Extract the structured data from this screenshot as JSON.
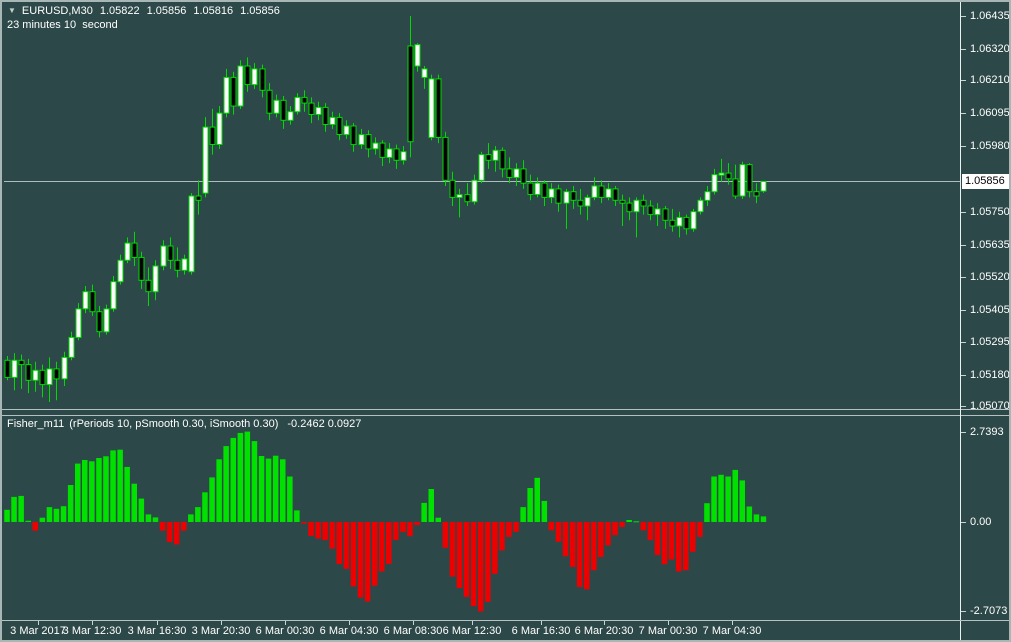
{
  "header": {
    "countdown": "23 minutes 10  second"
  },
  "icons": {
    "symbol_marker": "▼"
  },
  "colors": {
    "background": "#2d4848",
    "candle_outline": "#00db00",
    "bull_fill": "#ffffff",
    "bear_fill": "#000000",
    "hist_up": "#00e100",
    "hist_down": "#ee0000",
    "text": "#ffffff",
    "price_line": "#aebcbc",
    "current_price_bg": "#ffffff",
    "current_price_text": "#000000",
    "frame": "#a9b6b6"
  },
  "chart_data": [
    {
      "type": "candlestick",
      "title": "EURUSD,M30",
      "symbol": "EURUSD",
      "timeframe": "M30",
      "ohlc_current": {
        "open": "1.05822",
        "high": "1.05856",
        "low": "1.05816",
        "close": "1.05856"
      },
      "current_price": "1.05856",
      "grid": "off",
      "legend_position": "top-left",
      "y_axis": {
        "side": "right",
        "range": [
          1.0507,
          1.06435
        ],
        "ticks": [
          "1.06435",
          "1.06320",
          "1.06210",
          "1.06095",
          "1.05980",
          "1.05750",
          "1.05635",
          "1.05520",
          "1.05405",
          "1.05295",
          "1.05180",
          "1.05070"
        ]
      },
      "x_axis": {
        "labels": [
          [
            "3 Mar 2017",
            36
          ],
          [
            "3 Mar 12:30",
            90
          ],
          [
            "3 Mar 16:30",
            155
          ],
          [
            "3 Mar 20:30",
            219
          ],
          [
            "6 Mar 00:30",
            283
          ],
          [
            "6 Mar 04:30",
            347
          ],
          [
            "6 Mar 08:30",
            411
          ],
          [
            "6 Mar 12:30",
            470
          ],
          [
            "6 Mar 16:30",
            539
          ],
          [
            "6 Mar 20:30",
            602
          ],
          [
            "7 Mar 00:30",
            666
          ],
          [
            "7 Mar 04:30",
            730
          ]
        ]
      },
      "candles": [
        [
          1.0523,
          1.05245,
          1.0516,
          1.0517
        ],
        [
          1.0517,
          1.05255,
          1.05125,
          1.0523
        ],
        [
          1.0523,
          1.0525,
          1.0513,
          1.05215
        ],
        [
          1.05215,
          1.05235,
          1.05115,
          1.0516
        ],
        [
          1.0516,
          1.05225,
          1.0512,
          1.05195
        ],
        [
          1.05195,
          1.05215,
          1.051,
          1.05145
        ],
        [
          1.05145,
          1.0524,
          1.05084,
          1.052
        ],
        [
          1.052,
          1.05225,
          1.0509,
          1.05165
        ],
        [
          1.05165,
          1.0526,
          1.0514,
          1.0524
        ],
        [
          1.0524,
          1.0533,
          1.0523,
          1.0531
        ],
        [
          1.0531,
          1.0543,
          1.053,
          1.0541
        ],
        [
          1.0541,
          1.0549,
          1.05395,
          1.0547
        ],
        [
          1.0547,
          1.05495,
          1.05385,
          1.054
        ],
        [
          1.054,
          1.0542,
          1.0531,
          1.0533
        ],
        [
          1.0533,
          1.05425,
          1.0532,
          1.0541
        ],
        [
          1.0541,
          1.05525,
          1.054,
          1.05505
        ],
        [
          1.05505,
          1.056,
          1.05495,
          1.0558
        ],
        [
          1.0558,
          1.0566,
          1.0557,
          1.0564
        ],
        [
          1.0564,
          1.0568,
          1.0556,
          1.0559
        ],
        [
          1.0559,
          1.0561,
          1.0548,
          1.0551
        ],
        [
          1.0551,
          1.05555,
          1.0542,
          1.0547
        ],
        [
          1.0547,
          1.0558,
          1.0544,
          1.0556
        ],
        [
          1.0556,
          1.0565,
          1.05545,
          1.0563
        ],
        [
          1.0563,
          1.0566,
          1.0555,
          1.0558
        ],
        [
          1.0558,
          1.05625,
          1.0552,
          1.05545
        ],
        [
          1.05545,
          1.056,
          1.0553,
          1.05585
        ],
        [
          1.0554,
          1.05815,
          1.0553,
          1.05805
        ],
        [
          1.05805,
          1.0586,
          1.0574,
          1.0579
        ],
        [
          1.05815,
          1.06081,
          1.058,
          1.06046
        ],
        [
          1.06046,
          1.0611,
          1.0595,
          1.05985
        ],
        [
          1.05985,
          1.0612,
          1.0597,
          1.06095
        ],
        [
          1.06095,
          1.0625,
          1.0608,
          1.0622
        ],
        [
          1.0622,
          1.0624,
          1.0609,
          1.0612
        ],
        [
          1.0612,
          1.0628,
          1.0611,
          1.0626
        ],
        [
          1.0626,
          1.0629,
          1.0617,
          1.06195
        ],
        [
          1.06195,
          1.0627,
          1.0618,
          1.0625
        ],
        [
          1.0625,
          1.06265,
          1.0615,
          1.06175
        ],
        [
          1.06175,
          1.062,
          1.0607,
          1.06095
        ],
        [
          1.06095,
          1.0616,
          1.0608,
          1.0614
        ],
        [
          1.0614,
          1.06155,
          1.0604,
          1.0607
        ],
        [
          1.0607,
          1.0612,
          1.06055,
          1.061
        ],
        [
          1.061,
          1.06165,
          1.0609,
          1.0615
        ],
        [
          1.0615,
          1.06175,
          1.061,
          1.0613
        ],
        [
          1.0613,
          1.0615,
          1.0606,
          1.0609
        ],
        [
          1.0609,
          1.06135,
          1.0607,
          1.06115
        ],
        [
          1.06115,
          1.0613,
          1.0603,
          1.06055
        ],
        [
          1.06055,
          1.061,
          1.0604,
          1.0608
        ],
        [
          1.0608,
          1.06095,
          1.06,
          1.0602
        ],
        [
          1.0602,
          1.0607,
          1.06005,
          1.0605
        ],
        [
          1.0605,
          1.0606,
          1.0596,
          1.05985
        ],
        [
          1.05985,
          1.0604,
          1.0597,
          1.0602
        ],
        [
          1.0602,
          1.06035,
          1.0594,
          1.0597
        ],
        [
          1.0597,
          1.0601,
          1.0595,
          1.0599
        ],
        [
          1.0599,
          1.06,
          1.0591,
          1.0594
        ],
        [
          1.0594,
          1.0599,
          1.0592,
          1.0597
        ],
        [
          1.0597,
          1.05985,
          1.059,
          1.0593
        ],
        [
          1.0593,
          1.0598,
          1.05915,
          1.0596
        ],
        [
          1.0633,
          1.06435,
          1.0594,
          1.05995
        ],
        [
          1.0626,
          1.0634,
          1.0624,
          1.06335
        ],
        [
          1.0622,
          1.0626,
          1.0618,
          1.0625
        ],
        [
          1.0601,
          1.0623,
          1.06,
          1.06215
        ],
        [
          1.06215,
          1.0623,
          1.0599,
          1.0601
        ],
        [
          1.0601,
          1.0603,
          1.0584,
          1.0586
        ],
        [
          1.0586,
          1.0589,
          1.0577,
          1.058
        ],
        [
          1.058,
          1.0583,
          1.0573,
          1.0581
        ],
        [
          1.0581,
          1.0585,
          1.0577,
          1.05785
        ],
        [
          1.05785,
          1.0588,
          1.05775,
          1.0586
        ],
        [
          1.0586,
          1.0596,
          1.0585,
          1.0595
        ],
        [
          1.0595,
          1.0599,
          1.059,
          1.0593
        ],
        [
          1.0593,
          1.0598,
          1.0589,
          1.05965
        ],
        [
          1.05965,
          1.05975,
          1.0587,
          1.059
        ],
        [
          1.059,
          1.0594,
          1.0585,
          1.0587
        ],
        [
          1.0587,
          1.0592,
          1.0584,
          1.059
        ],
        [
          1.059,
          1.0593,
          1.0583,
          1.0585
        ],
        [
          1.0585,
          1.0588,
          1.0579,
          1.0581
        ],
        [
          1.0581,
          1.0587,
          1.058,
          1.0585
        ],
        [
          1.0585,
          1.0586,
          1.0577,
          1.058
        ],
        [
          1.058,
          1.0585,
          1.0578,
          1.0583
        ],
        [
          1.0583,
          1.05845,
          1.0575,
          1.0578
        ],
        [
          1.0578,
          1.0583,
          1.0569,
          1.0582
        ],
        [
          1.0582,
          1.0584,
          1.0576,
          1.0579
        ],
        [
          1.0579,
          1.0583,
          1.0574,
          1.0577
        ],
        [
          1.0577,
          1.0581,
          1.0572,
          1.058
        ],
        [
          1.058,
          1.0587,
          1.0579,
          1.0584
        ],
        [
          1.0584,
          1.0586,
          1.0578,
          1.058
        ],
        [
          1.058,
          1.0585,
          1.0579,
          1.0583
        ],
        [
          1.0583,
          1.0584,
          1.0577,
          1.0579
        ],
        [
          1.0579,
          1.0581,
          1.057,
          1.0578
        ],
        [
          1.0578,
          1.058,
          1.0572,
          1.0575
        ],
        [
          1.0575,
          1.058,
          1.0566,
          1.0579
        ],
        [
          1.0579,
          1.0581,
          1.0574,
          1.0577
        ],
        [
          1.0577,
          1.0579,
          1.0572,
          1.0574
        ],
        [
          1.0574,
          1.0578,
          1.057,
          1.0576
        ],
        [
          1.0576,
          1.0577,
          1.0569,
          1.0572
        ],
        [
          1.0572,
          1.0576,
          1.0568,
          1.057
        ],
        [
          1.057,
          1.0575,
          1.0566,
          1.0573
        ],
        [
          1.0573,
          1.0574,
          1.0567,
          1.0569
        ],
        [
          1.0569,
          1.0576,
          1.0568,
          1.0575
        ],
        [
          1.0575,
          1.058,
          1.0574,
          1.0579
        ],
        [
          1.0579,
          1.0584,
          1.0577,
          1.0582
        ],
        [
          1.0582,
          1.059,
          1.0581,
          1.0588
        ],
        [
          1.0588,
          1.05935,
          1.05855,
          1.05885
        ],
        [
          1.05885,
          1.0592,
          1.05845,
          1.05865
        ],
        [
          1.05865,
          1.05915,
          1.05795,
          1.05805
        ],
        [
          1.05805,
          1.05925,
          1.05795,
          1.05915
        ],
        [
          1.05915,
          1.0592,
          1.058,
          1.0582
        ],
        [
          1.0582,
          1.0585,
          1.0578,
          1.05805
        ],
        [
          1.05822,
          1.05856,
          1.05816,
          1.05856
        ]
      ]
    },
    {
      "type": "bar",
      "title": "Fisher_m11",
      "params": "(rPeriods 10, pSmooth 0.30, iSmooth 0.30)",
      "values_label": "-0.2462 0.0927",
      "legend_position": "top-left",
      "grid": "off",
      "y_axis": {
        "side": "right",
        "range": [
          -2.7073,
          2.7393
        ],
        "ticks": [
          "2.7393",
          "0.00",
          "-2.7073"
        ]
      },
      "values": [
        0.37,
        0.76,
        0.79,
        0.04,
        -0.26,
        0.13,
        0.45,
        0.4,
        0.48,
        1.12,
        1.77,
        1.88,
        1.84,
        1.94,
        1.99,
        2.17,
        2.19,
        1.67,
        1.16,
        0.71,
        0.23,
        0.14,
        -0.26,
        -0.61,
        -0.68,
        -0.26,
        0.23,
        0.45,
        0.9,
        1.35,
        1.9,
        2.3,
        2.55,
        2.7,
        2.74,
        2.45,
        2.0,
        1.92,
        2.01,
        1.9,
        1.38,
        0.35,
        -0.05,
        -0.42,
        -0.5,
        -0.55,
        -0.81,
        -1.27,
        -1.42,
        -1.95,
        -2.29,
        -2.41,
        -1.93,
        -1.5,
        -1.27,
        -0.55,
        -0.3,
        -0.43,
        -0.09,
        0.58,
        1.0,
        0.13,
        -0.78,
        -1.65,
        -2.0,
        -2.27,
        -2.55,
        -2.71,
        -2.42,
        -1.57,
        -0.86,
        -0.45,
        -0.3,
        0.45,
        1.03,
        1.34,
        0.64,
        -0.25,
        -0.6,
        -1.04,
        -1.36,
        -1.97,
        -2.04,
        -1.46,
        -1.06,
        -0.71,
        -0.4,
        -0.15,
        0.06,
        0.02,
        -0.25,
        -0.55,
        -1.0,
        -1.28,
        -1.14,
        -1.5,
        -1.46,
        -0.9,
        -0.45,
        0.57,
        1.38,
        1.43,
        1.38,
        1.58,
        1.26,
        0.47,
        0.23,
        0.17
      ]
    }
  ]
}
